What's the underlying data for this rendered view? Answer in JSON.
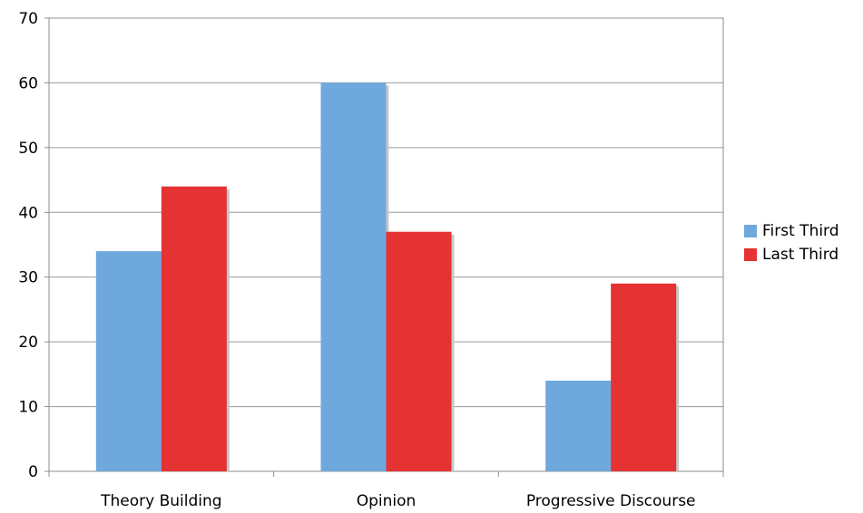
{
  "chart_data": {
    "type": "bar",
    "title": "",
    "xlabel": "",
    "ylabel": "",
    "categories": [
      "Theory Building",
      "Opinion",
      "Progressive Discourse"
    ],
    "series": [
      {
        "name": "First Third",
        "color": "#6fa8dc",
        "values": [
          34,
          60,
          14
        ]
      },
      {
        "name": "Last Third",
        "color": "#e53232",
        "values": [
          44,
          37,
          29
        ]
      }
    ],
    "ylim": [
      0,
      70
    ],
    "yticks": [
      0,
      10,
      20,
      30,
      40,
      50,
      60,
      70
    ],
    "grid": true,
    "legend_position": "right"
  }
}
